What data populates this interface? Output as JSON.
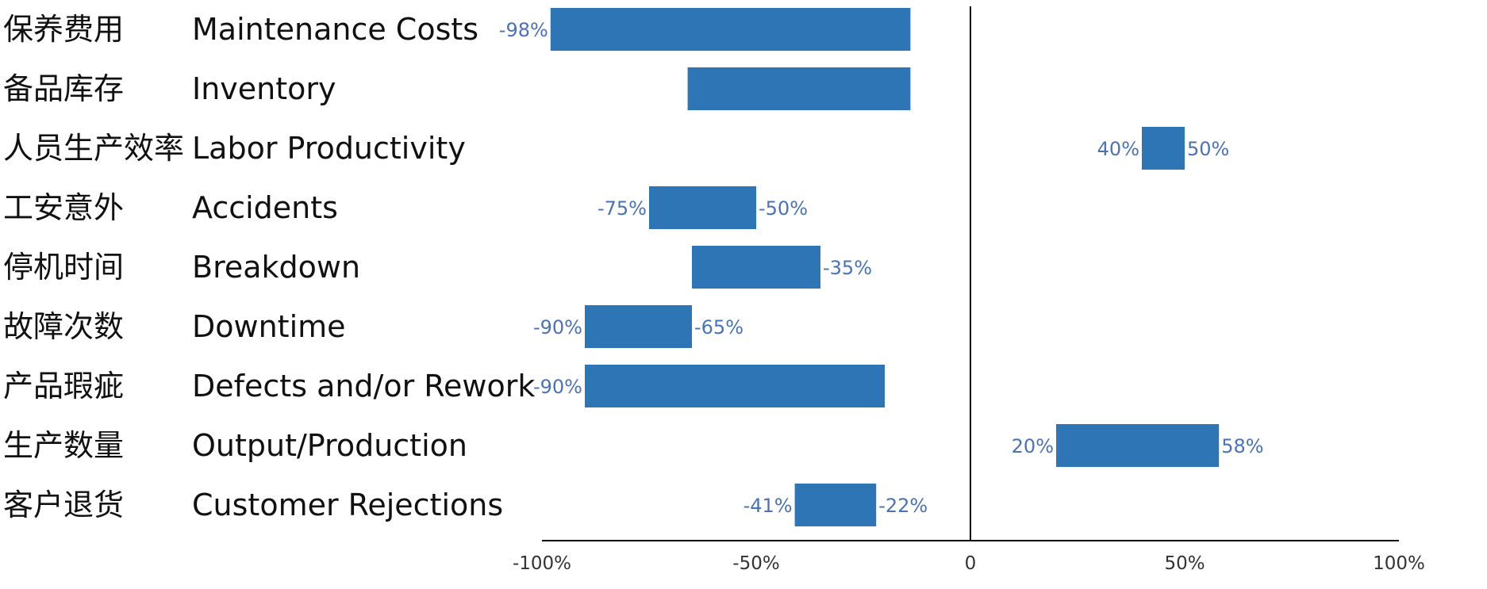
{
  "chart_data": {
    "type": "bar",
    "subtype": "floating-range-horizontal",
    "title": "",
    "xlabel": "",
    "ylabel": "",
    "xlim": [
      -100,
      100
    ],
    "grid": false,
    "legend": "none",
    "bar_color": "#2e75b6",
    "label_color": "#4a72b8",
    "x_ticks": [
      {
        "value": -100,
        "label": "-100%"
      },
      {
        "value": -50,
        "label": "-50%"
      },
      {
        "value": 0,
        "label": "0"
      },
      {
        "value": 50,
        "label": "50%"
      },
      {
        "value": 100,
        "label": "100%"
      }
    ],
    "categories": [
      {
        "zh": "保养费用",
        "en": "Maintenance Costs",
        "start": -98,
        "end": -14,
        "start_label": "-98%",
        "end_label": ""
      },
      {
        "zh": "备品库存",
        "en": "Inventory",
        "start": -66,
        "end": -14,
        "start_label": "",
        "end_label": ""
      },
      {
        "zh": "人员生产效率",
        "en": "Labor Productivity",
        "start": 40,
        "end": 50,
        "start_label": "40%",
        "end_label": "50%"
      },
      {
        "zh": "工安意外",
        "en": "Accidents",
        "start": -75,
        "end": -50,
        "start_label": "-75%",
        "end_label": "-50%"
      },
      {
        "zh": "停机时间",
        "en": "Breakdown",
        "start": -65,
        "end": -35,
        "start_label": "",
        "end_label": "-35%"
      },
      {
        "zh": "故障次数",
        "en": "Downtime",
        "start": -90,
        "end": -65,
        "start_label": "-90%",
        "end_label": "-65%"
      },
      {
        "zh": "产品瑕疵",
        "en": "Defects and/or Rework",
        "start": -90,
        "end": -20,
        "start_label": "-90%",
        "end_label": ""
      },
      {
        "zh": "生产数量",
        "en": "Output/Production",
        "start": 20,
        "end": 58,
        "start_label": "20%",
        "end_label": "58%"
      },
      {
        "zh": "客户退货",
        "en": "Customer Rejections",
        "start": -41,
        "end": -22,
        "start_label": "-41%",
        "end_label": "-22%"
      }
    ]
  }
}
